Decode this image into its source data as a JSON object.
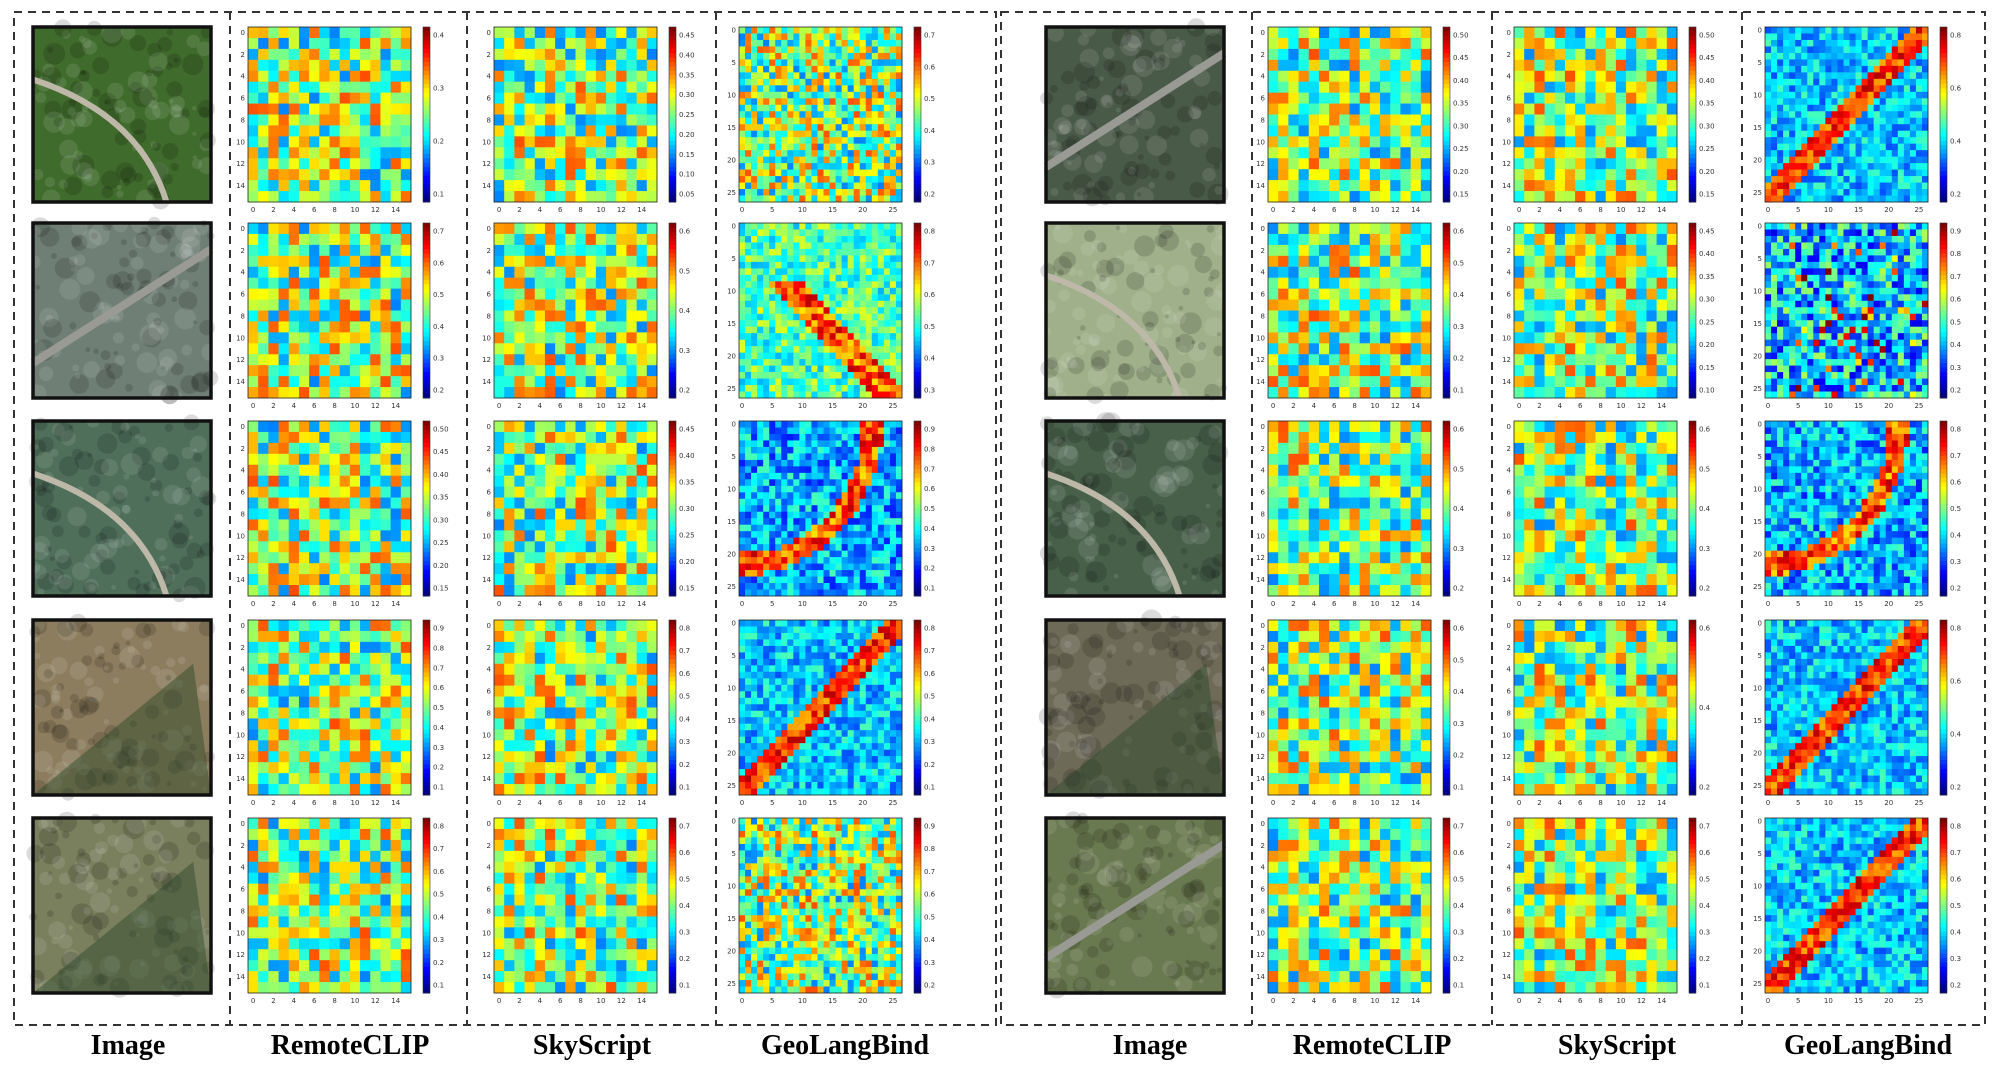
{
  "figure": {
    "columns": [
      "Image",
      "RemoteCLIP",
      "SkyScript",
      "GeoLangBind"
    ],
    "panels": [
      {
        "rows": [
          {
            "cbar": {
              "RemoteCLIP": [
                "0.1",
                "0.2",
                "0.3",
                "0.4"
              ],
              "SkyScript": [
                "0.05",
                "0.10",
                "0.15",
                "0.20",
                "0.25",
                "0.30",
                "0.35",
                "0.40",
                "0.45"
              ],
              "GeoLangBind": [
                "0.2",
                "0.3",
                "0.4",
                "0.5",
                "0.6",
                "0.7"
              ]
            }
          },
          {
            "cbar": {
              "RemoteCLIP": [
                "0.2",
                "0.3",
                "0.4",
                "0.5",
                "0.6",
                "0.7"
              ],
              "SkyScript": [
                "0.2",
                "0.3",
                "0.4",
                "0.5",
                "0.6"
              ],
              "GeoLangBind": [
                "0.3",
                "0.4",
                "0.5",
                "0.6",
                "0.7",
                "0.8"
              ]
            }
          },
          {
            "cbar": {
              "RemoteCLIP": [
                "0.15",
                "0.20",
                "0.25",
                "0.30",
                "0.35",
                "0.40",
                "0.45",
                "0.50"
              ],
              "SkyScript": [
                "0.15",
                "0.20",
                "0.25",
                "0.30",
                "0.35",
                "0.40",
                "0.45"
              ],
              "GeoLangBind": [
                "0.1",
                "0.2",
                "0.3",
                "0.4",
                "0.5",
                "0.6",
                "0.7",
                "0.8",
                "0.9"
              ]
            }
          },
          {
            "cbar": {
              "RemoteCLIP": [
                "0.1",
                "0.2",
                "0.3",
                "0.4",
                "0.5",
                "0.6",
                "0.7",
                "0.8",
                "0.9"
              ],
              "SkyScript": [
                "0.1",
                "0.2",
                "0.3",
                "0.4",
                "0.5",
                "0.6",
                "0.7",
                "0.8"
              ],
              "GeoLangBind": [
                "0.1",
                "0.2",
                "0.3",
                "0.4",
                "0.5",
                "0.6",
                "0.7",
                "0.8"
              ]
            }
          },
          {
            "cbar": {
              "RemoteCLIP": [
                "0.1",
                "0.2",
                "0.3",
                "0.4",
                "0.5",
                "0.6",
                "0.7",
                "0.8"
              ],
              "SkyScript": [
                "0.1",
                "0.2",
                "0.3",
                "0.4",
                "0.5",
                "0.6",
                "0.7"
              ],
              "GeoLangBind": [
                "0.2",
                "0.3",
                "0.4",
                "0.5",
                "0.6",
                "0.7",
                "0.8",
                "0.9"
              ]
            }
          }
        ]
      },
      {
        "rows": [
          {
            "cbar": {
              "RemoteCLIP": [
                "0.15",
                "0.20",
                "0.25",
                "0.30",
                "0.35",
                "0.40",
                "0.45",
                "0.50"
              ],
              "SkyScript": [
                "0.15",
                "0.20",
                "0.25",
                "0.30",
                "0.35",
                "0.40",
                "0.45",
                "0.50"
              ],
              "GeoLangBind": [
                "0.2",
                "0.4",
                "0.6",
                "0.8"
              ]
            }
          },
          {
            "cbar": {
              "RemoteCLIP": [
                "0.1",
                "0.2",
                "0.3",
                "0.4",
                "0.5",
                "0.6"
              ],
              "SkyScript": [
                "0.10",
                "0.15",
                "0.20",
                "0.25",
                "0.30",
                "0.35",
                "0.40",
                "0.45"
              ],
              "GeoLangBind": [
                "0.2",
                "0.3",
                "0.4",
                "0.5",
                "0.6",
                "0.7",
                "0.8",
                "0.9"
              ]
            }
          },
          {
            "cbar": {
              "RemoteCLIP": [
                "0.2",
                "0.3",
                "0.4",
                "0.5",
                "0.6"
              ],
              "SkyScript": [
                "0.2",
                "0.3",
                "0.4",
                "0.5",
                "0.6"
              ],
              "GeoLangBind": [
                "0.2",
                "0.3",
                "0.4",
                "0.5",
                "0.6",
                "0.7",
                "0.8"
              ]
            }
          },
          {
            "cbar": {
              "RemoteCLIP": [
                "0.1",
                "0.2",
                "0.3",
                "0.4",
                "0.5",
                "0.6"
              ],
              "SkyScript": [
                "0.2",
                "0.4",
                "0.6"
              ],
              "GeoLangBind": [
                "0.2",
                "0.4",
                "0.6",
                "0.8"
              ]
            }
          },
          {
            "cbar": {
              "RemoteCLIP": [
                "0.1",
                "0.2",
                "0.3",
                "0.4",
                "0.5",
                "0.6",
                "0.7"
              ],
              "SkyScript": [
                "0.1",
                "0.2",
                "0.3",
                "0.4",
                "0.5",
                "0.6",
                "0.7"
              ],
              "GeoLangBind": [
                "0.2",
                "0.3",
                "0.4",
                "0.5",
                "0.6",
                "0.7",
                "0.8"
              ]
            }
          }
        ]
      }
    ],
    "axes": {
      "coarse_ticks": [
        "0",
        "2",
        "4",
        "6",
        "8",
        "10",
        "12",
        "14"
      ],
      "fine_ticks": [
        "0",
        "5",
        "10",
        "15",
        "20",
        "25"
      ]
    },
    "photo_colors": [
      [
        "#3f6b2c",
        "#6f7f75",
        "#4f6f5a",
        "#8c7d5e",
        "#7a7f5e"
      ],
      [
        "#4a5a48",
        "#9fb08a",
        "#48604a",
        "#6e6a58",
        "#6a7a50"
      ]
    ]
  }
}
